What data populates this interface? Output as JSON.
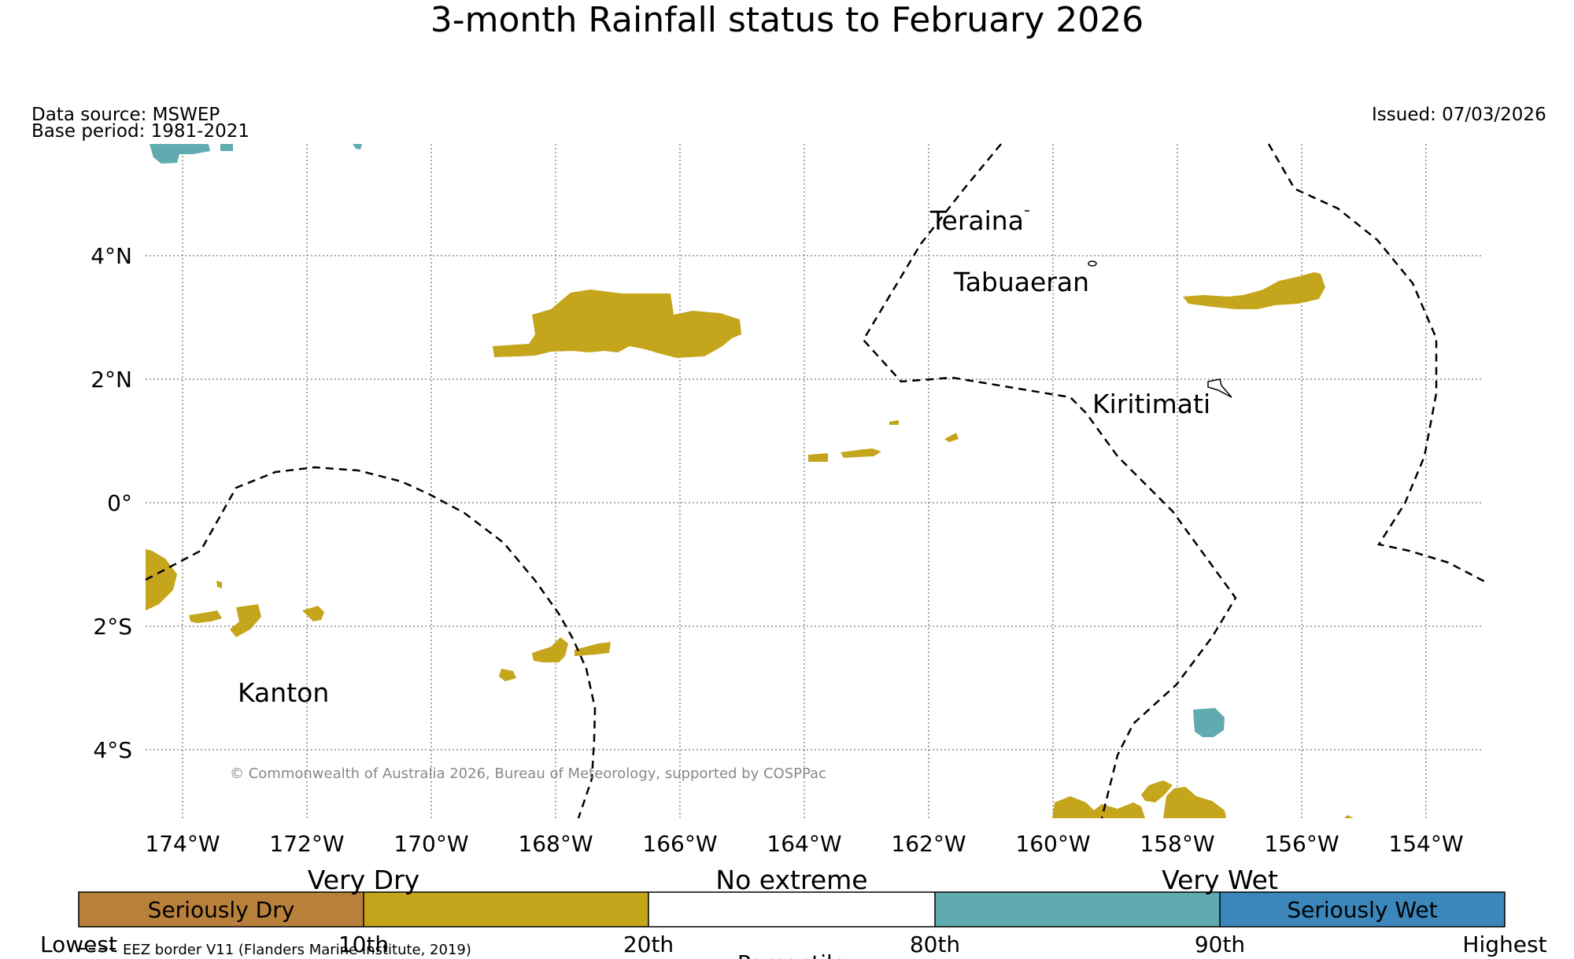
{
  "title": "3-month Rainfall status to February 2026",
  "meta": {
    "data_source": "Data source: MSWEP",
    "base_period": "Base period: 1981-2021",
    "issued": "Issued: 07/03/2026"
  },
  "map": {
    "lat_ticks": [
      "4°N",
      "2°N",
      "0°",
      "2°S",
      "4°S"
    ],
    "lon_ticks": [
      "174°W",
      "172°W",
      "170°W",
      "168°W",
      "166°W",
      "164°W",
      "162°W",
      "160°W",
      "158°W",
      "156°W",
      "154°W"
    ],
    "places": {
      "teraina": "Teraina",
      "tabuaeran": "Tabuaeran",
      "kiritimati": "Kiritimati",
      "kanton": "Kanton"
    },
    "copyright": "© Commonwealth of Australia 2026, Bureau of Meteorology, supported by COSPPac"
  },
  "legend": {
    "categories": {
      "very_dry": "Very Dry",
      "no_extreme": "No extreme",
      "very_wet": "Very Wet"
    },
    "segments": [
      {
        "label": "Seriously Dry",
        "color": "#b8803a"
      },
      {
        "label": "",
        "color": "#c5a51c"
      },
      {
        "label": "",
        "color": "#ffffff"
      },
      {
        "label": "",
        "color": "#5fabb0"
      },
      {
        "label": "Seriously Wet",
        "color": "#3b87bb"
      }
    ],
    "boundaries": [
      "Lowest",
      "10th",
      "20th",
      "80th",
      "90th",
      "Highest"
    ],
    "xlabel": "Percentile",
    "eez_note": "EEZ border V11 (Flanders Marine Institute, 2019)"
  }
}
